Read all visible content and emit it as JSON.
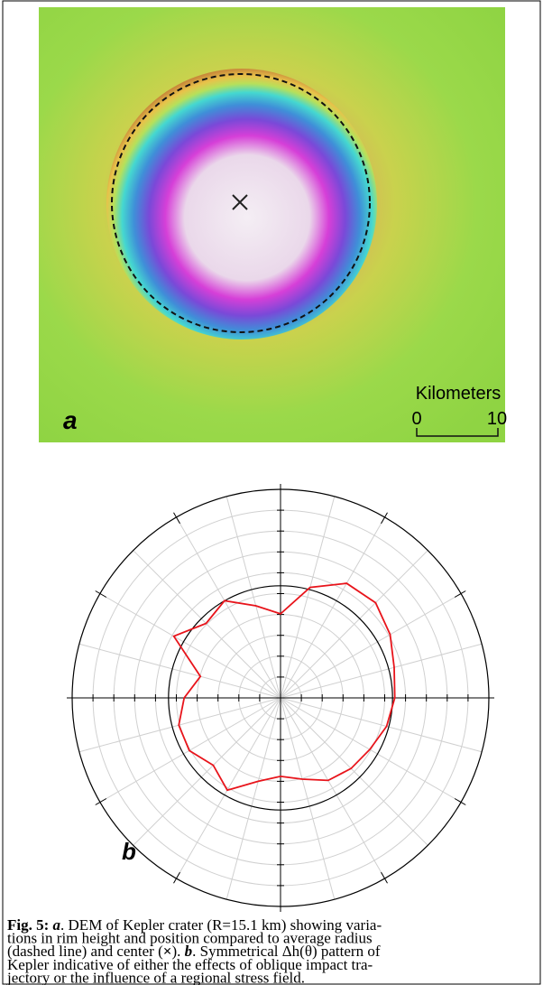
{
  "figure": {
    "panel_a": {
      "label": "a",
      "scale_title": "Kilometers",
      "scale_ticks": [
        "0",
        "10"
      ]
    },
    "panel_b": {
      "label": "b",
      "theta_deg": [
        0,
        15,
        30,
        45,
        60,
        75,
        90,
        105,
        120,
        135,
        150,
        165,
        180,
        195,
        210,
        225,
        240,
        255,
        270,
        285,
        300,
        315,
        330,
        345
      ],
      "r": [
        1.02,
        1.05,
        1.13,
        1.2,
        1.18,
        1.02,
        0.75,
        0.85,
        1.0,
        0.94,
        1.1,
        0.74,
        0.86,
        0.94,
        0.94,
        0.85,
        0.95,
        0.77,
        0.7,
        0.75,
        0.85,
        0.89,
        0.92,
        0.98
      ],
      "rlim": [
        0,
        1.86
      ],
      "reference_r": 1,
      "color": "#e8141b"
    },
    "caption": {
      "lines": [
        [
          {
            "text": "Fig. 5: ",
            "b": true,
            "i": false
          },
          {
            "text": "a",
            "b": true,
            "i": true
          },
          {
            "text": ". DEM of Kepler crater (R=15.1 km) showing varia-",
            "b": false,
            "i": false
          }
        ],
        [
          {
            "text": "tions in rim height and position compared to average radius",
            "b": false,
            "i": false
          }
        ],
        [
          {
            "text": "(dashed line) and center (",
            "b": false,
            "i": false
          },
          {
            "text": "×",
            "b": true,
            "i": false
          },
          {
            "text": "). ",
            "b": false,
            "i": false
          },
          {
            "text": "b",
            "b": true,
            "i": true
          },
          {
            "text": ". Symmetrical Δh(θ) pattern of",
            "b": false,
            "i": false
          }
        ],
        [
          {
            "text": "Kepler indicative of either the effects of oblique impact tra-",
            "b": false,
            "i": false
          }
        ],
        [
          {
            "text": "jectory or the influence of a regional stress field.",
            "b": false,
            "i": false
          }
        ]
      ]
    }
  }
}
